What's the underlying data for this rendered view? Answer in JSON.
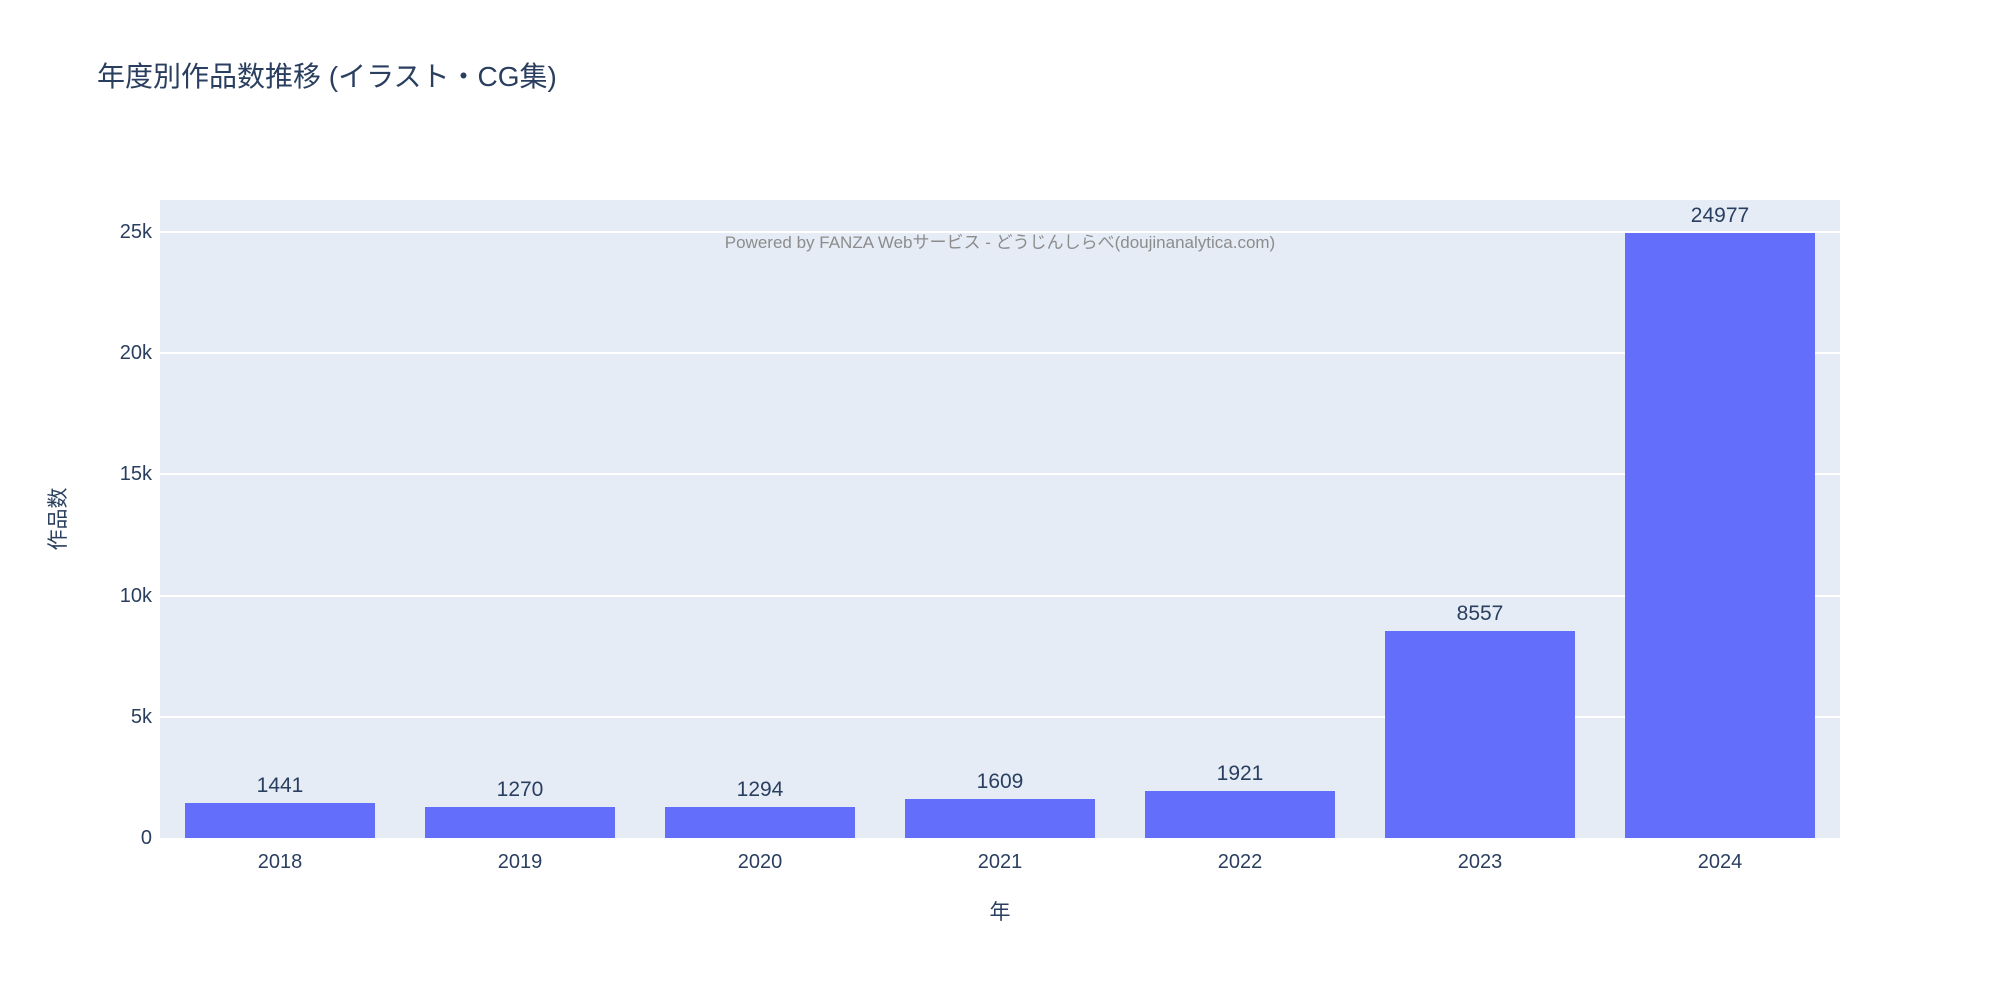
{
  "watermark": "Powered by FANZA Webサービス - どうじんしらべ(doujinanalytica.com)",
  "chart_data": {
    "type": "bar",
    "title": "年度別作品数推移 (イラスト・CG集)",
    "categories": [
      "2018",
      "2019",
      "2020",
      "2021",
      "2022",
      "2023",
      "2024"
    ],
    "values": [
      1441,
      1270,
      1294,
      1609,
      1921,
      8557,
      24977
    ],
    "xlabel": "年",
    "ylabel": "作品数",
    "ylim": [
      0,
      26320
    ],
    "yticks": [
      "0",
      "5k",
      "10k",
      "15k",
      "20k",
      "25k"
    ],
    "ytick_values": [
      0,
      5000,
      10000,
      15000,
      20000,
      25000
    ],
    "grid": true,
    "legend": "none",
    "bar_color": "#636EFA",
    "plot_bg": "#E5ECF6",
    "grid_color": "#FFFFFF",
    "text_color": "#2A3F5F",
    "watermark_color": "#8C8C8C"
  }
}
